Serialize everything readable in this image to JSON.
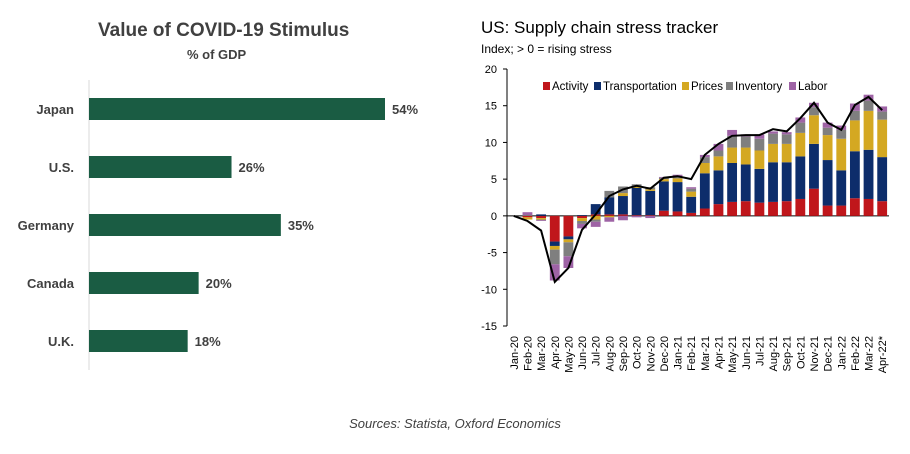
{
  "chart_data": [
    {
      "type": "bar",
      "orientation": "horizontal",
      "title": "Value of COVID-19 Stimulus",
      "subtitle": "% of GDP",
      "categories": [
        "Japan",
        "U.S.",
        "Germany",
        "Canada",
        "U.K."
      ],
      "values": [
        54,
        26,
        35,
        20,
        18
      ],
      "value_labels": [
        "54%",
        "26%",
        "35%",
        "20%",
        "18%"
      ],
      "xlim": [
        0,
        60
      ],
      "colors": {
        "bar": "#1a5c43"
      },
      "grid": false
    },
    {
      "type": "bar",
      "stacked": true,
      "title": "US: Supply chain stress tracker",
      "subtitle": "Index; > 0 = rising stress",
      "categories": [
        "Jan-20",
        "Feb-20",
        "Mar-20",
        "Apr-20",
        "May-20",
        "Jun-20",
        "Jul-20",
        "Aug-20",
        "Sep-20",
        "Oct-20",
        "Nov-20",
        "Dec-20",
        "Jan-21",
        "Feb-21",
        "Mar-21",
        "Apr-21",
        "May-21",
        "Jun-21",
        "Jul-21",
        "Aug-21",
        "Sep-21",
        "Oct-21",
        "Nov-21",
        "Dec-21",
        "Jan-22",
        "Feb-22",
        "Mar-22",
        "Apr-22*"
      ],
      "tick_labels": [
        "Jan-20",
        "Feb-20",
        "Mar-20",
        "Apr-20",
        "May-20",
        "Jun-20",
        "Jul-20",
        "Aug-20",
        "Sep-20",
        "Oct-20",
        "Nov-20",
        "Dec-20",
        "Jan-21",
        "Feb-21",
        "Mar-21",
        "Apr-21",
        "May-21",
        "Jun-21",
        "Jul-21",
        "Aug-21",
        "Sep-21",
        "Oct-21",
        "Nov-21",
        "Dec-21",
        "Jan-22",
        "Feb-22",
        "Mar-22",
        "Apr-22*"
      ],
      "series": [
        {
          "name": "Activity",
          "color": "#c0161b",
          "values": [
            0,
            -0.2,
            -0.3,
            -3.5,
            -2.8,
            -0.3,
            0.2,
            0.2,
            0.2,
            0.1,
            0.1,
            0.7,
            0.6,
            0.4,
            1.0,
            1.6,
            1.9,
            2.0,
            1.8,
            1.9,
            2.0,
            2.3,
            3.7,
            1.4,
            1.4,
            2.4,
            2.3,
            2.0
          ]
        },
        {
          "name": "Transportation",
          "color": "#0d2d6b",
          "values": [
            0,
            0,
            0.2,
            -0.6,
            -0.4,
            0.1,
            1.4,
            2.3,
            2.5,
            3.7,
            3.3,
            4.0,
            4.0,
            2.2,
            4.8,
            4.6,
            5.3,
            5.0,
            4.6,
            5.4,
            5.3,
            5.8,
            6.1,
            6.2,
            4.8,
            6.4,
            6.7,
            6.0
          ]
        },
        {
          "name": "Prices",
          "color": "#d4a822",
          "values": [
            0,
            -0.3,
            -0.2,
            -0.5,
            -0.4,
            -0.4,
            -0.5,
            -0.2,
            0.4,
            0.2,
            0.2,
            0.3,
            0.5,
            0.7,
            1.4,
            1.9,
            2.1,
            2.3,
            2.5,
            2.5,
            2.5,
            3.2,
            3.9,
            3.4,
            4.3,
            4.2,
            5.3,
            5.1
          ]
        },
        {
          "name": "Inventory",
          "color": "#7f7f7f",
          "values": [
            0,
            0.1,
            -0.1,
            -2.0,
            -1.9,
            -0.4,
            -0.3,
            0.9,
            0.9,
            0.3,
            0.3,
            0.2,
            0.3,
            0.4,
            0.8,
            0.8,
            1.6,
            1.5,
            1.6,
            1.4,
            1.3,
            1.4,
            1.1,
            1.0,
            1.2,
            1.3,
            1.4,
            1.1
          ]
        },
        {
          "name": "Labor",
          "color": "#9e63a5",
          "values": [
            0,
            0.4,
            -0.1,
            -2.2,
            -1.6,
            -0.6,
            -0.7,
            -0.6,
            -0.6,
            -0.2,
            -0.3,
            0.1,
            0.2,
            0.2,
            0.3,
            0.9,
            0.8,
            0.3,
            0.6,
            0.3,
            0.3,
            0.7,
            0.6,
            0.7,
            0.6,
            1.0,
            0.8,
            0.7
          ]
        }
      ],
      "line": {
        "values": [
          0,
          -0.7,
          -2.0,
          -9.0,
          -7.1,
          -1.9,
          0.2,
          2.7,
          3.6,
          4.1,
          3.7,
          5.2,
          5.4,
          5.0,
          8.3,
          9.8,
          10.9,
          11.0,
          11.0,
          11.8,
          11.5,
          13.3,
          15.4,
          12.7,
          11.7,
          15.1,
          16.2,
          14.4
        ],
        "color": "#000000"
      },
      "ylim": [
        -15,
        20
      ],
      "yticks": [
        -15,
        -10,
        -5,
        0,
        5,
        10,
        15,
        20
      ],
      "legend": "top",
      "grid": false
    }
  ],
  "source": "Sources: Statista, Oxford Economics"
}
